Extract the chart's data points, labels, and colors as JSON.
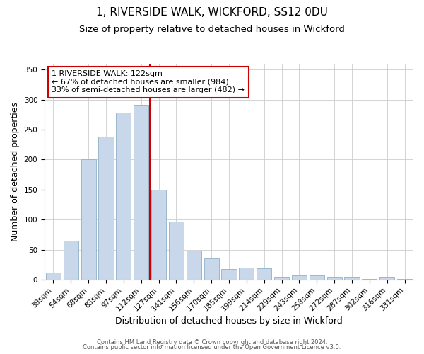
{
  "title": "1, RIVERSIDE WALK, WICKFORD, SS12 0DU",
  "subtitle": "Size of property relative to detached houses in Wickford",
  "xlabel": "Distribution of detached houses by size in Wickford",
  "ylabel": "Number of detached properties",
  "categories": [
    "39sqm",
    "54sqm",
    "68sqm",
    "83sqm",
    "97sqm",
    "112sqm",
    "127sqm",
    "141sqm",
    "156sqm",
    "170sqm",
    "185sqm",
    "199sqm",
    "214sqm",
    "229sqm",
    "243sqm",
    "258sqm",
    "272sqm",
    "287sqm",
    "302sqm",
    "316sqm",
    "331sqm"
  ],
  "bar_values": [
    12,
    65,
    200,
    238,
    278,
    290,
    150,
    97,
    48,
    35,
    18,
    20,
    19,
    5,
    7,
    7,
    4,
    4,
    1,
    5,
    1
  ],
  "bar_color": "#c8d8ea",
  "bar_edge_color": "#9ab8cc",
  "vline_color": "#cc0000",
  "annotation_line1": "1 RIVERSIDE WALK: 122sqm",
  "annotation_line2": "← 67% of detached houses are smaller (984)",
  "annotation_line3": "33% of semi-detached houses are larger (482) →",
  "annotation_box_color": "#ffffff",
  "annotation_box_edge_color": "#cc0000",
  "ylim": [
    0,
    360
  ],
  "yticks": [
    0,
    50,
    100,
    150,
    200,
    250,
    300,
    350
  ],
  "background_color": "#ffffff",
  "grid_color": "#cccccc",
  "footer_line1": "Contains HM Land Registry data © Crown copyright and database right 2024.",
  "footer_line2": "Contains public sector information licensed under the Open Government Licence v3.0.",
  "title_fontsize": 11,
  "subtitle_fontsize": 9.5,
  "xlabel_fontsize": 9,
  "ylabel_fontsize": 9,
  "tick_fontsize": 7.5,
  "annotation_fontsize": 8,
  "footer_fontsize": 6
}
